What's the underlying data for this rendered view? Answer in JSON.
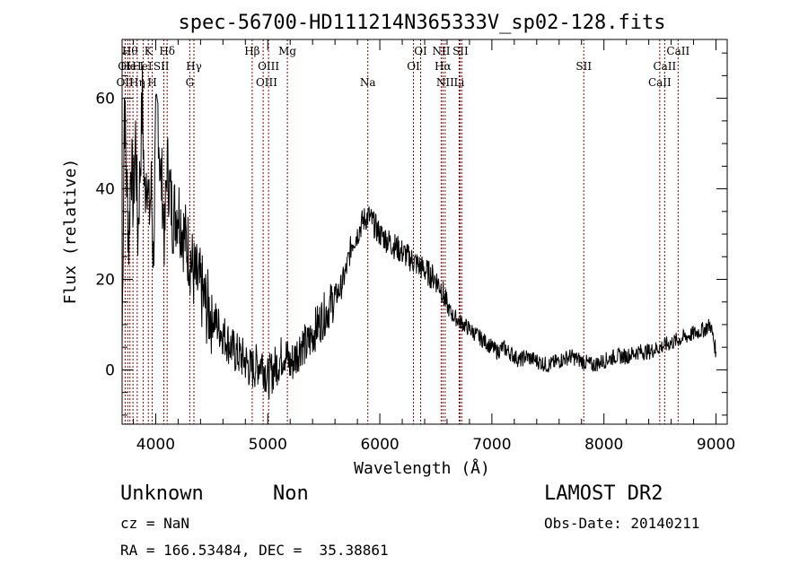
{
  "chart_data": {
    "type": "line",
    "title": "spec-56700-HD111214N365333V_sp02-128.fits",
    "xlabel": "Wavelength (Å)",
    "ylabel": "Flux (relative)",
    "xlim": [
      3700,
      9100
    ],
    "ylim": [
      -12,
      73
    ],
    "xticks": [
      4000,
      5000,
      6000,
      7000,
      8000,
      9000
    ],
    "yticks": [
      0,
      20,
      40,
      60
    ],
    "grid": false,
    "series": [
      {
        "x": [
          3700,
          3720,
          3740,
          3760,
          3780,
          3800,
          3820,
          3840,
          3860,
          3880,
          3900,
          3920,
          3940,
          3960,
          3980,
          4000,
          4020,
          4040,
          4060,
          4080,
          4100,
          4150,
          4200,
          4250,
          4300,
          4350,
          4400,
          4450,
          4500,
          4550,
          4600,
          4650,
          4700,
          4750,
          4800,
          4850,
          4900,
          4950,
          5000,
          5050,
          5100,
          5150,
          5200,
          5250,
          5300,
          5350,
          5400,
          5450,
          5500,
          5550,
          5600,
          5650,
          5700,
          5750,
          5800,
          5850,
          5900,
          5950,
          6000,
          6050,
          6100,
          6150,
          6200,
          6250,
          6300,
          6350,
          6400,
          6450,
          6500,
          6550,
          6600,
          6650,
          6700,
          6750,
          6800,
          6850,
          6900,
          6950,
          7000,
          7050,
          7100,
          7150,
          7200,
          7250,
          7300,
          7400,
          7500,
          7600,
          7700,
          7800,
          7900,
          8000,
          8100,
          8200,
          8300,
          8400,
          8500,
          8600,
          8700,
          8800,
          8900,
          8950,
          9000
        ],
        "y": [
          5,
          60,
          42,
          28,
          48,
          36,
          52,
          30,
          44,
          60,
          38,
          46,
          34,
          40,
          24,
          52,
          58,
          44,
          40,
          28,
          46,
          34,
          36,
          30,
          26,
          20,
          18,
          14,
          12,
          10,
          8,
          6,
          4,
          3,
          2,
          0,
          1,
          2,
          -2,
          0,
          2,
          4,
          1,
          3,
          6,
          5,
          8,
          10,
          12,
          14,
          16,
          18,
          22,
          28,
          30,
          33,
          34,
          32,
          30,
          29,
          28,
          27,
          26,
          25,
          24,
          23,
          22,
          21,
          20,
          18,
          14,
          12,
          11,
          10,
          9,
          8,
          7,
          6,
          5,
          4,
          5,
          4,
          3,
          2,
          3,
          2,
          1,
          2,
          3,
          2,
          1,
          2,
          3,
          3,
          4,
          4,
          5,
          6,
          7,
          8,
          9,
          10,
          4
        ]
      }
    ],
    "lines": [
      {
        "x": 3727,
        "labels": [
          "OII"
        ]
      },
      {
        "x": 3750,
        "labels": [
          "OI"
        ]
      },
      {
        "x": 3770,
        "labels": [
          "Hθ"
        ]
      },
      {
        "x": 3797,
        "labels": [
          "He I"
        ]
      },
      {
        "x": 3835,
        "labels": [
          "Hη"
        ]
      },
      {
        "x": 3889,
        "labels": [
          "HeI"
        ]
      },
      {
        "x": 3934,
        "labels": [
          "K"
        ]
      },
      {
        "x": 3969,
        "labels": [
          "H"
        ]
      },
      {
        "x": 4072,
        "labels": [
          "SII"
        ]
      },
      {
        "x": 4102,
        "labels": [
          "Hδ"
        ]
      },
      {
        "x": 4304,
        "labels": [
          "G"
        ]
      },
      {
        "x": 4341,
        "labels": [
          "Hγ"
        ]
      },
      {
        "x": 4861,
        "labels": [
          "Hβ"
        ]
      },
      {
        "x": 4959,
        "labels": [
          "OIII"
        ]
      },
      {
        "x": 5007,
        "labels": [
          "OIII"
        ]
      },
      {
        "x": 5175,
        "labels": [
          "Mg"
        ]
      },
      {
        "x": 5893,
        "labels": [
          "Na"
        ]
      },
      {
        "x": 6300,
        "labels": [
          "OI"
        ]
      },
      {
        "x": 6364,
        "labels": [
          "OI"
        ]
      },
      {
        "x": 6548,
        "labels": [
          "NII"
        ]
      },
      {
        "x": 6563,
        "labels": [
          "Hα"
        ]
      },
      {
        "x": 6583,
        "labels": [
          "NII"
        ]
      },
      {
        "x": 6708,
        "labels": [
          "Li"
        ]
      },
      {
        "x": 6716,
        "labels": [
          "SII"
        ]
      },
      {
        "x": 6731,
        "labels": [
          "SII"
        ]
      },
      {
        "x": 7820,
        "labels": [
          "SII"
        ]
      },
      {
        "x": 8498,
        "labels": [
          "CaII"
        ]
      },
      {
        "x": 8542,
        "labels": [
          "CaII"
        ]
      },
      {
        "x": 8662,
        "labels": [
          "CaII"
        ]
      }
    ],
    "label_rows": [
      {
        "x": 3720,
        "row": 2,
        "text": "OI"
      },
      {
        "x": 3725,
        "row": 3,
        "text": "OII"
      },
      {
        "x": 3770,
        "row": 1,
        "text": "Hθ"
      },
      {
        "x": 3790,
        "row": 2,
        "text": "He I"
      },
      {
        "x": 3835,
        "row": 3,
        "text": "Hη"
      },
      {
        "x": 3880,
        "row": 2,
        "text": "HeI"
      },
      {
        "x": 3934,
        "row": 1,
        "text": "K"
      },
      {
        "x": 3969,
        "row": 3,
        "text": "H"
      },
      {
        "x": 4050,
        "row": 2,
        "text": "SII"
      },
      {
        "x": 4102,
        "row": 1,
        "text": "Hδ"
      },
      {
        "x": 4304,
        "row": 3,
        "text": "G"
      },
      {
        "x": 4341,
        "row": 2,
        "text": "Hγ"
      },
      {
        "x": 4861,
        "row": 1,
        "text": "Hβ"
      },
      {
        "x": 5007,
        "row": 2,
        "text": "OIII"
      },
      {
        "x": 4990,
        "row": 3,
        "text": "OIII"
      },
      {
        "x": 5175,
        "row": 1,
        "text": "Mg"
      },
      {
        "x": 5893,
        "row": 3,
        "text": "Na"
      },
      {
        "x": 6364,
        "row": 1,
        "text": "OI"
      },
      {
        "x": 6300,
        "row": 2,
        "text": "OI"
      },
      {
        "x": 6563,
        "row": 2,
        "text": "Hα"
      },
      {
        "x": 6548,
        "row": 1,
        "text": "NII"
      },
      {
        "x": 6583,
        "row": 3,
        "text": "NII"
      },
      {
        "x": 6708,
        "row": 3,
        "text": "Li"
      },
      {
        "x": 6720,
        "row": 1,
        "text": "SII"
      },
      {
        "x": 7820,
        "row": 2,
        "text": "SII"
      },
      {
        "x": 8498,
        "row": 3,
        "text": "CaII"
      },
      {
        "x": 8542,
        "row": 2,
        "text": "CaII"
      },
      {
        "x": 8662,
        "row": 1,
        "text": "CaII"
      }
    ],
    "colors": {
      "spectrum": "#000000",
      "lines": "#8b0000"
    }
  },
  "info": {
    "class": "Unknown",
    "subclass": "Non",
    "survey": "LAMOST DR2",
    "cz": "cz = NaN",
    "obs_date": "Obs-Date: 20140211",
    "radec": "RA = 166.53484, DEC =  35.38861"
  }
}
